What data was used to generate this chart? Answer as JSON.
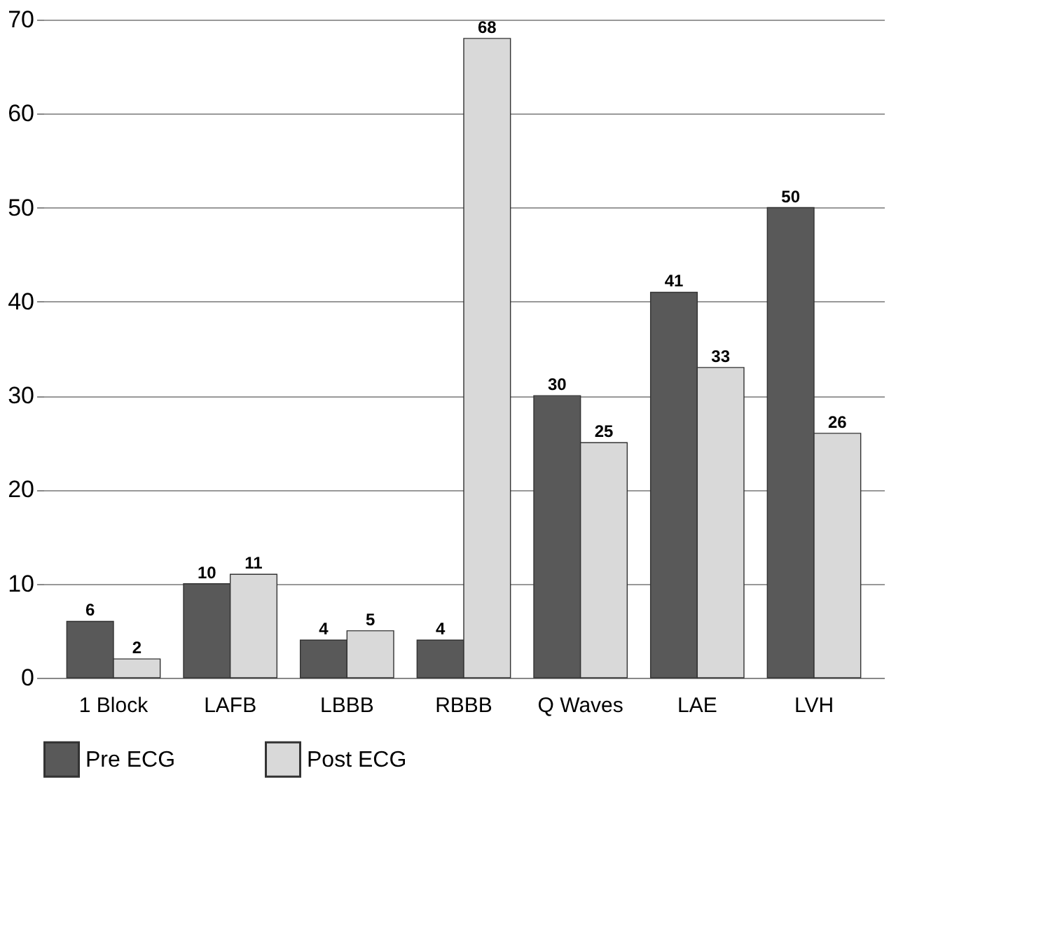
{
  "chart_data": {
    "type": "bar",
    "categories": [
      "1 Block",
      "LAFB",
      "LBBB",
      "RBBB",
      "Q Waves",
      "LAE",
      "LVH"
    ],
    "series": [
      {
        "name": "Pre ECG",
        "color": "#595959",
        "values": [
          6,
          10,
          4,
          4,
          30,
          41,
          50
        ]
      },
      {
        "name": "Post ECG",
        "color": "#d9d9d9",
        "values": [
          2,
          11,
          5,
          68,
          25,
          33,
          26
        ]
      }
    ],
    "ylim": [
      0,
      70
    ],
    "yticks": [
      0,
      10,
      20,
      30,
      40,
      50,
      60,
      70
    ],
    "grid": "y",
    "legend": "bottom",
    "data_labels": true
  }
}
